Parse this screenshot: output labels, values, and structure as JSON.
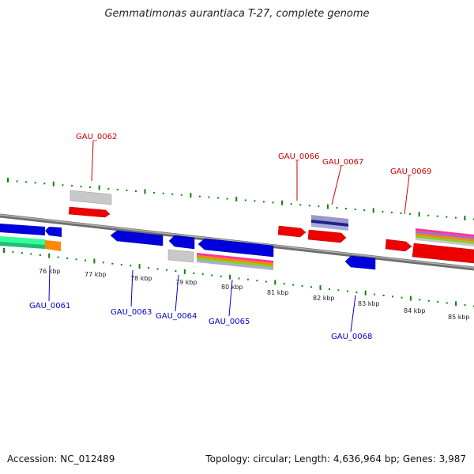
{
  "title": "Gemmatimonas aurantiaca T-27, complete genome",
  "footer": {
    "accession": "Accession: NC_012489",
    "info": "Topology: circular; Length: 4,636,964 bp; Genes: 3,987"
  },
  "colors": {
    "forward_label": "#cc0000",
    "reverse_label": "#0000cc",
    "forward_gene": "#ee0000",
    "reverse_gene": "#0000dd",
    "tick": "#008800",
    "backbone": "#777777"
  },
  "ticks": [
    "76 kbp",
    "77 kbp",
    "78 kbp",
    "79 kbp",
    "80 kbp",
    "81 kbp",
    "82 kbp",
    "83 kbp",
    "84 kbp",
    "85 kbp"
  ],
  "forward_genes": [
    "GAU_0062",
    "GAU_0066",
    "GAU_0067",
    "GAU_0069"
  ],
  "reverse_genes": [
    "GAU_0061",
    "GAU_0063",
    "GAU_0064",
    "GAU_0065",
    "GAU_0068"
  ]
}
